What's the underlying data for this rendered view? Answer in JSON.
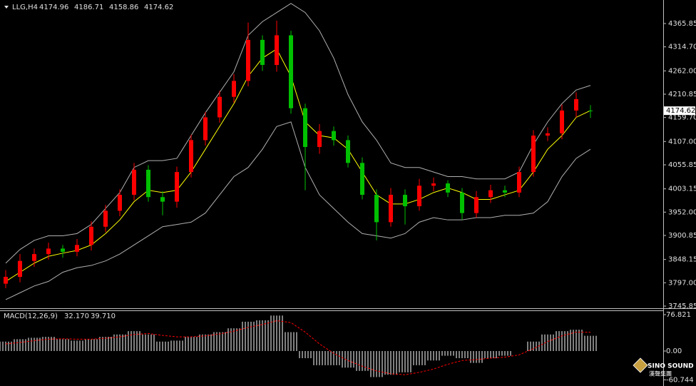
{
  "chart_data": {
    "type": "candlestick",
    "symbol": "LLG,H4",
    "categories": [
      null,
      null,
      null,
      null,
      null,
      null,
      null,
      null,
      null,
      null,
      null,
      null,
      null,
      null,
      null,
      null,
      null,
      null,
      null,
      null,
      null,
      null,
      null,
      null,
      null,
      null,
      null,
      null,
      null,
      null,
      null,
      null,
      null,
      null,
      null,
      null,
      null,
      null,
      null,
      null,
      null,
      null
    ],
    "open": [
      3795,
      3810,
      3845,
      3860,
      3872,
      3865,
      3880,
      3920,
      3955,
      3990,
      4045,
      3985,
      3975,
      4040,
      4110,
      4160,
      4205,
      4240,
      4330,
      4275,
      4340,
      4180,
      4095,
      4130,
      4110,
      4060,
      3990,
      3930,
      3990,
      3965,
      4010,
      4015,
      3995,
      3950,
      3985,
      4000,
      3995,
      4040,
      4120,
      4125,
      4175,
      4174.96
    ],
    "high": [
      3825,
      3860,
      3872,
      3885,
      3880,
      3893,
      3932,
      3968,
      4002,
      4060,
      4055,
      3998,
      4052,
      4122,
      4172,
      4218,
      4255,
      4368,
      4340,
      4372,
      4350,
      4190,
      4145,
      4140,
      4120,
      4072,
      4002,
      4005,
      4002,
      4025,
      4028,
      4022,
      4005,
      3998,
      4012,
      4010,
      4052,
      4132,
      4138,
      4188,
      4215,
      4186.71
    ],
    "low": [
      3785,
      3798,
      3832,
      3848,
      3852,
      3855,
      3868,
      3908,
      3943,
      3978,
      3975,
      3945,
      3962,
      4028,
      4098,
      4148,
      4192,
      4228,
      4262,
      4260,
      4168,
      4000,
      4080,
      4098,
      4050,
      3980,
      3890,
      3920,
      3925,
      3955,
      3998,
      3985,
      3935,
      3940,
      3972,
      3985,
      3985,
      4030,
      4108,
      4112,
      4160,
      4158.86
    ],
    "close": [
      3810,
      3845,
      3860,
      3872,
      3865,
      3880,
      3920,
      3955,
      3990,
      4045,
      3985,
      3975,
      4040,
      4110,
      4160,
      4205,
      4240,
      4330,
      4275,
      4340,
      4180,
      4095,
      4130,
      4110,
      4060,
      3990,
      3930,
      3990,
      3965,
      4010,
      4015,
      3995,
      3950,
      3985,
      4000,
      3995,
      4040,
      4120,
      4125,
      4175,
      4200,
      4174.62
    ],
    "up_color": "#ff0000",
    "down_color": "#00c000",
    "overlays": [
      {
        "color": "#b0b0b0",
        "values": [
          3840,
          3870,
          3890,
          3900,
          3900,
          3905,
          3925,
          3960,
          3995,
          4050,
          4065,
          4065,
          4070,
          4120,
          4170,
          4215,
          4260,
          4340,
          4370,
          4390,
          4410,
          4390,
          4350,
          4290,
          4210,
          4150,
          4110,
          4060,
          4050,
          4050,
          4040,
          4030,
          4030,
          4025,
          4025,
          4025,
          4040,
          4100,
          4150,
          4190,
          4220,
          4230
        ]
      },
      {
        "color": "#b0b0b0",
        "values": [
          3760,
          3775,
          3790,
          3800,
          3820,
          3830,
          3835,
          3845,
          3860,
          3880,
          3900,
          3920,
          3925,
          3930,
          3950,
          3990,
          4030,
          4050,
          4090,
          4140,
          4150,
          4050,
          3990,
          3960,
          3930,
          3905,
          3900,
          3895,
          3905,
          3930,
          3940,
          3935,
          3935,
          3940,
          3940,
          3945,
          3945,
          3950,
          3975,
          4030,
          4070,
          4090
        ]
      },
      {
        "color": "#ffff00",
        "values": [
          3800,
          3820,
          3840,
          3855,
          3862,
          3868,
          3880,
          3905,
          3935,
          3975,
          4000,
          3995,
          4000,
          4040,
          4090,
          4140,
          4190,
          4250,
          4290,
          4310,
          4250,
          4150,
          4120,
          4115,
          4090,
          4040,
          3990,
          3970,
          3970,
          3980,
          3995,
          4005,
          3995,
          3980,
          3980,
          3990,
          4000,
          4040,
          4090,
          4120,
          4160,
          4175
        ]
      }
    ],
    "ylim": [
      3741.15,
      4417.5
    ],
    "yticks": [
      4365.85,
      {
        "value": 4314.7,
        "label": "4314.70"
      },
      {
        "value": 4262,
        "label": "4262.00"
      },
      4210.85,
      {
        "value": 4159.7,
        "label": "4159.70"
      },
      {
        "value": 4107,
        "label": "4107.00"
      },
      4055.85,
      4003.15,
      {
        "value": 3952,
        "label": "3952.00"
      },
      3900.85,
      3848.15,
      {
        "value": 3797,
        "label": "3797.00"
      },
      3745.85
    ],
    "macd": {
      "title": "MACD(12,26,9)",
      "last_labels": [
        "32.170",
        "39.710"
      ],
      "histogram": [
        20,
        25,
        28,
        30,
        25,
        22,
        25,
        30,
        35,
        42,
        35,
        20,
        22,
        30,
        35,
        40,
        48,
        62,
        65,
        75,
        40,
        -15,
        -30,
        -30,
        -35,
        -42,
        -55,
        -50,
        -45,
        -30,
        -20,
        -10,
        -15,
        -25,
        -15,
        -10,
        0,
        20,
        35,
        42,
        45,
        32.17
      ],
      "signal": [
        15,
        18,
        22,
        25,
        26,
        25,
        25,
        27,
        30,
        35,
        37,
        33,
        30,
        30,
        32,
        36,
        42,
        50,
        56,
        64,
        60,
        40,
        15,
        -5,
        -20,
        -32,
        -42,
        -48,
        -50,
        -45,
        -38,
        -28,
        -20,
        -18,
        -15,
        -13,
        -8,
        5,
        20,
        32,
        40,
        39.71
      ],
      "hist_color": "#ffffff",
      "signal_color": "#ff0000",
      "ylim": [
        -72.3,
        84.35
      ],
      "yticks": [
        76.821,
        {
          "value": 0,
          "label": "0.00"
        },
        -60.744
      ]
    },
    "logo": {
      "name": "SINO SOUND",
      "subtitle": "漢聲集團"
    }
  }
}
